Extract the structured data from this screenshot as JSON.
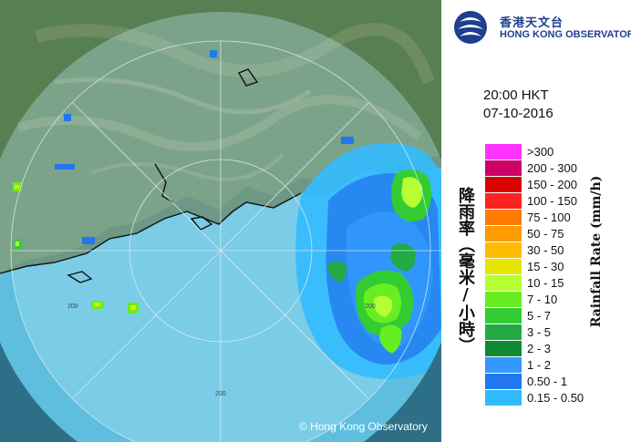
{
  "header": {
    "org_name_zh": "香港天文台",
    "org_name_en": "HONG KONG OBSERVATORY",
    "logo_icon": "hko-logo-icon"
  },
  "timestamp": {
    "time": "20:00 HKT",
    "date": "07-10-2016"
  },
  "legend": {
    "title_zh": "降雨率（毫米/小時）",
    "title_en": "Rainfall Rate (mm/h)",
    "items": [
      {
        "label": ">300",
        "color": "#ff33ff"
      },
      {
        "label": "200 - 300",
        "color": "#cc0066"
      },
      {
        "label": "150 - 200",
        "color": "#dd0000"
      },
      {
        "label": "100 - 150",
        "color": "#ff2222"
      },
      {
        "label": "75 - 100",
        "color": "#ff7a00"
      },
      {
        "label": "50 - 75",
        "color": "#ff9a00"
      },
      {
        "label": "30 - 50",
        "color": "#ffbb00"
      },
      {
        "label": "15 - 30",
        "color": "#e6e600"
      },
      {
        "label": "10 - 15",
        "color": "#b6ff33"
      },
      {
        "label": "7 - 10",
        "color": "#66ee22"
      },
      {
        "label": "5 - 7",
        "color": "#33cc33"
      },
      {
        "label": "3 - 5",
        "color": "#22aa44"
      },
      {
        "label": "2 - 3",
        "color": "#118833"
      },
      {
        "label": "1 - 2",
        "color": "#3399ff"
      },
      {
        "label": "0.50 - 1",
        "color": "#2277ee"
      },
      {
        "label": "0.15 - 0.50",
        "color": "#33bbff"
      }
    ]
  },
  "map": {
    "credit": "© Hong Kong Observatory",
    "range_ring_labels": [
      "200",
      "200",
      "200"
    ]
  }
}
